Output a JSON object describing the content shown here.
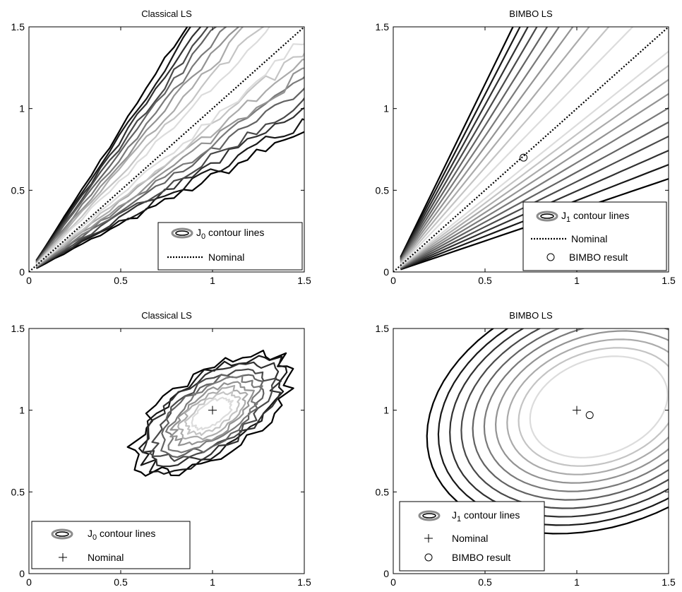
{
  "chart_data": [
    {
      "type": "contour",
      "title": "Classical LS",
      "xlabel": "",
      "ylabel": "",
      "xlim": [
        0,
        1.5
      ],
      "ylim": [
        0,
        1.5
      ],
      "xticks": [
        "0",
        "0.5",
        "1",
        "1.5"
      ],
      "yticks": [
        "0",
        "0.5",
        "1",
        "1.5"
      ],
      "grid": false,
      "contour_shape": "wedge along the diagonal, ragged (noisy) level lines",
      "legend": {
        "position": "bottom-right",
        "entries": [
          {
            "label_main": "J",
            "label_sub": "0",
            "label_rest": " contour lines",
            "marker": "contour-ellipse"
          },
          {
            "label": "Nominal",
            "marker": "dotted-line"
          }
        ]
      },
      "series": [
        {
          "name": "Nominal",
          "style": "dotted",
          "x": [
            0,
            1.5
          ],
          "y": [
            0,
            1.5
          ]
        }
      ],
      "colors": {
        "outer": "#000000",
        "inner": "#dcdcdc"
      }
    },
    {
      "type": "contour",
      "title": "BIMBO LS",
      "xlabel": "",
      "ylabel": "",
      "xlim": [
        0,
        1.5
      ],
      "ylim": [
        0,
        1.5
      ],
      "xticks": [
        "0",
        "0.5",
        "1",
        "1.5"
      ],
      "yticks": [
        "0",
        "0.5",
        "1",
        "1.5"
      ],
      "grid": false,
      "contour_shape": "smooth wedge opening from the origin, widening to the right",
      "legend": {
        "position": "bottom-right",
        "entries": [
          {
            "label_main": "J",
            "label_sub": "1",
            "label_rest": " contour lines",
            "marker": "contour-ellipse"
          },
          {
            "label": "Nominal",
            "marker": "dotted-line"
          },
          {
            "label": "BIMBO result",
            "marker": "circle"
          }
        ]
      },
      "series": [
        {
          "name": "Nominal",
          "style": "dotted",
          "x": [
            0,
            1.5
          ],
          "y": [
            0,
            1.5
          ]
        },
        {
          "name": "BIMBO result",
          "style": "circle",
          "x": [
            0.71
          ],
          "y": [
            0.7
          ]
        }
      ],
      "colors": {
        "outer": "#000000",
        "inner": "#dcdcdc"
      }
    },
    {
      "type": "contour",
      "title": "Classical LS",
      "xlabel": "",
      "ylabel": "",
      "xlim": [
        0,
        1.5
      ],
      "ylim": [
        0,
        1.5
      ],
      "xticks": [
        "0",
        "0.5",
        "1",
        "1.5"
      ],
      "yticks": [
        "0",
        "0.5",
        "1",
        "1.5"
      ],
      "grid": false,
      "contour_shape": "ragged tilted blob centred near (1, 1)",
      "legend": {
        "position": "bottom-left",
        "entries": [
          {
            "label_main": "J",
            "label_sub": "0",
            "label_rest": " contour lines",
            "marker": "contour-ellipse"
          },
          {
            "label": "Nominal",
            "marker": "plus"
          }
        ]
      },
      "series": [
        {
          "name": "Nominal",
          "style": "plus",
          "x": [
            1.0
          ],
          "y": [
            1.0
          ]
        }
      ],
      "colors": {
        "outer": "#000000",
        "inner": "#dcdcdc"
      }
    },
    {
      "type": "contour",
      "title": "BIMBO LS",
      "xlabel": "",
      "ylabel": "",
      "xlim": [
        0,
        1.5
      ],
      "ylim": [
        0,
        1.5
      ],
      "xticks": [
        "0",
        "0.5",
        "1",
        "1.5"
      ],
      "yticks": [
        "0",
        "0.5",
        "1",
        "1.5"
      ],
      "grid": false,
      "contour_shape": "smooth nested ellipses centred near (1.1, 1.0)",
      "legend": {
        "position": "bottom-left",
        "entries": [
          {
            "label_main": "J",
            "label_sub": "1",
            "label_rest": " contour lines",
            "marker": "contour-ellipse"
          },
          {
            "label": "Nominal",
            "marker": "plus"
          },
          {
            "label": "BIMBO result",
            "marker": "circle"
          }
        ]
      },
      "series": [
        {
          "name": "Nominal",
          "style": "plus",
          "x": [
            1.0
          ],
          "y": [
            1.0
          ]
        },
        {
          "name": "BIMBO result",
          "style": "circle",
          "x": [
            1.07
          ],
          "y": [
            0.97
          ]
        }
      ],
      "colors": {
        "outer": "#000000",
        "inner": "#dcdcdc"
      }
    }
  ]
}
